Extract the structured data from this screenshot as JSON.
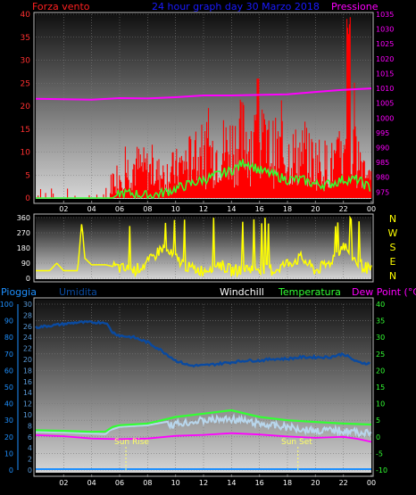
{
  "header": {
    "left_label": "Forza vento",
    "title": "24 hour graph day  30 Marzo 2018",
    "right_label": "Pressione"
  },
  "panel3_labels": {
    "rain": "Pioggia",
    "humidity": "Umidita",
    "windchill": "Windchill",
    "temperature": "Temperatura",
    "dewpoint": "Dew Point (°C)"
  },
  "compass": [
    "N",
    "W",
    "S",
    "E",
    "N"
  ],
  "events": {
    "sunrise": "Sun Rise",
    "sunset": "Sun Set"
  },
  "colors": {
    "wind": "#ff0000",
    "gust": "#ff0000",
    "avg_wind": "#33ff33",
    "pressure": "#ff00ff",
    "direction": "#ffff00",
    "humidity": "#0a4aa0",
    "windchill": "#b8d6ec",
    "temperature": "#33ff33",
    "dewpoint": "#ff00ff",
    "rain": "#1e90ff"
  },
  "chart_data": [
    {
      "type": "line",
      "x_ticks": [
        "02",
        "04",
        "06",
        "08",
        "10",
        "12",
        "14",
        "16",
        "18",
        "20",
        "22",
        "00"
      ],
      "y_left": {
        "ticks": [
          0,
          5,
          10,
          15,
          20,
          25,
          30,
          35,
          40
        ],
        "ylim": [
          0,
          40
        ]
      },
      "y_right": {
        "ticks": [
          975,
          980,
          985,
          990,
          995,
          1000,
          1005,
          1010,
          1015,
          1020,
          1025,
          1030,
          1035
        ],
        "ylim": [
          973,
          1035
        ]
      },
      "series": [
        {
          "values_hours": [
            0,
            1,
            2,
            3,
            4,
            5,
            5.5,
            6,
            7,
            8,
            9,
            10,
            11,
            12,
            13,
            14,
            15,
            16,
            17,
            18,
            19,
            20,
            21,
            22,
            23,
            24
          ],
          "values": [
            0,
            0,
            0,
            0,
            0,
            0,
            4,
            5,
            7,
            6,
            5,
            6,
            8,
            9,
            10,
            11,
            13,
            11,
            10,
            9,
            9,
            8,
            7,
            8,
            9,
            6
          ]
        },
        {
          "values_hours": [
            0,
            4,
            6,
            8,
            10,
            12,
            14,
            16,
            18,
            20,
            22,
            24
          ],
          "values": [
            1006.5,
            1006.2,
            1006.7,
            1006.6,
            1007.0,
            1007.6,
            1007.6,
            1007.8,
            1008.0,
            1008.8,
            1009.5,
            1010.0
          ]
        },
        {
          "values_hours": [
            0,
            5.5,
            6,
            7,
            8,
            9,
            10,
            11,
            12,
            13,
            14,
            15,
            16,
            17,
            18,
            19,
            20,
            21,
            22,
            23,
            24
          ],
          "values": [
            0,
            0,
            1,
            1,
            0.5,
            1,
            2,
            3,
            4,
            5,
            6,
            8,
            6,
            5,
            4,
            4,
            3,
            3,
            4,
            4,
            2
          ]
        }
      ]
    },
    {
      "type": "line",
      "x_ticks": [
        "02",
        "04",
        "06",
        "08",
        "10",
        "12",
        "14",
        "16",
        "18",
        "20",
        "22",
        "00"
      ],
      "y_left": {
        "ticks": [
          0,
          90,
          180,
          270,
          360
        ],
        "ylim": [
          0,
          360
        ]
      },
      "series": [
        {
          "values_hours": [
            0,
            1,
            1.5,
            2,
            2.5,
            3,
            3.3,
            3.5,
            4,
            5,
            6,
            7,
            8,
            9,
            10,
            11,
            12,
            13,
            14,
            15,
            16,
            17,
            18,
            19,
            20,
            21,
            22,
            23,
            24
          ],
          "values": [
            45,
            45,
            90,
            45,
            45,
            45,
            340,
            120,
            80,
            80,
            60,
            45,
            90,
            180,
            120,
            60,
            45,
            90,
            45,
            60,
            60,
            45,
            90,
            120,
            45,
            90,
            200,
            90,
            45
          ]
        }
      ]
    },
    {
      "type": "line",
      "x_ticks": [
        "02",
        "04",
        "06",
        "08",
        "10",
        "12",
        "14",
        "16",
        "18",
        "20",
        "22",
        "00"
      ],
      "y_left": {
        "ticks": [
          0,
          10,
          20,
          30,
          40,
          50,
          60,
          70,
          80,
          90,
          100
        ],
        "ylim": [
          0,
          100
        ]
      },
      "y_mid": {
        "ticks": [
          0,
          2,
          4,
          6,
          8,
          10,
          12,
          14,
          16,
          18,
          20,
          22,
          24,
          26,
          28,
          30
        ],
        "ylim": [
          0,
          30
        ]
      },
      "y_right": {
        "ticks": [
          -10,
          -5,
          0,
          5,
          10,
          15,
          20,
          25,
          30,
          35,
          40
        ],
        "ylim": [
          -10,
          40
        ]
      },
      "series": [
        {
          "values_hours": [
            0,
            1,
            2,
            3,
            4,
            5,
            5.5,
            6,
            7,
            8,
            9,
            10,
            11,
            12,
            13,
            14,
            15,
            16,
            17,
            18,
            19,
            20,
            21,
            22,
            23,
            24
          ],
          "values": [
            86,
            87,
            88,
            89,
            89,
            89,
            83,
            81,
            80,
            77,
            72,
            66,
            63,
            63,
            64,
            65,
            66,
            66,
            67,
            67,
            68,
            68,
            68,
            70,
            65,
            64
          ]
        },
        {
          "values_hours": [
            0,
            2,
            4,
            5,
            5.3,
            6,
            8,
            10,
            12,
            14,
            16,
            18,
            20,
            22,
            24
          ],
          "values": [
            1.5,
            1.3,
            1,
            0.8,
            2,
            3,
            3.5,
            5,
            6,
            6.5,
            5,
            4,
            3,
            3,
            2
          ]
        },
        {
          "values_hours": [
            0,
            2,
            4,
            5,
            5.5,
            6,
            8,
            10,
            12,
            14,
            16,
            18,
            20,
            22,
            24
          ],
          "values": [
            2,
            1.8,
            1.5,
            1.6,
            3,
            3.5,
            4,
            6,
            7,
            8,
            6,
            5,
            4.5,
            4,
            3.7
          ]
        },
        {
          "values_hours": [
            0,
            2,
            4,
            6,
            8,
            10,
            12,
            14,
            16,
            18,
            20,
            22,
            23,
            24
          ],
          "values": [
            0.5,
            0.2,
            -0.5,
            -0.7,
            -0.5,
            0.3,
            0.6,
            1.1,
            0.7,
            0.1,
            -0.3,
            0,
            -0.6,
            -1.5
          ]
        },
        {
          "values_hours": [
            0,
            24
          ],
          "values": [
            0,
            0
          ]
        }
      ]
    }
  ]
}
